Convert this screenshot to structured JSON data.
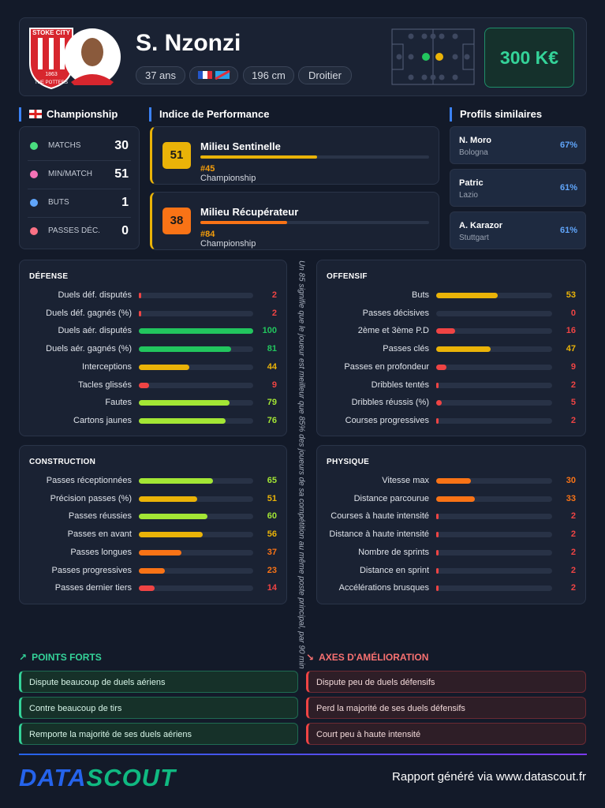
{
  "header": {
    "badge": [
      "STOKE CITY",
      "1863",
      "THE POTTERS"
    ],
    "name": "S. Nzonzi",
    "age": "37 ans",
    "height": "196 cm",
    "foot": "Droitier",
    "market_value": "300 K€"
  },
  "league": "Championship",
  "stats": [
    {
      "label": "MATCHS",
      "value": 30
    },
    {
      "label": "MIN/MATCH",
      "value": 51
    },
    {
      "label": "BUTS",
      "value": 1
    },
    {
      "label": "PASSES DÉC.",
      "value": 0
    }
  ],
  "performance": {
    "title": "Indice de Performance",
    "items": [
      {
        "score": 51,
        "role": "Milieu Sentinelle",
        "rank": "#45",
        "league": "Championship"
      },
      {
        "score": 38,
        "role": "Milieu Récupérateur",
        "rank": "#84",
        "league": "Championship"
      }
    ]
  },
  "similar": {
    "title": "Profils similaires",
    "items": [
      {
        "name": "N. Moro",
        "club": "Bologna",
        "similarity": "67%"
      },
      {
        "name": "Patric",
        "club": "Lazio",
        "similarity": "61%"
      },
      {
        "name": "A. Karazor",
        "club": "Stuttgart",
        "similarity": "61%"
      }
    ]
  },
  "panels": [
    {
      "title": "DÉFENSE",
      "metrics": [
        {
          "label": "Duels déf. disputés",
          "value": 2
        },
        {
          "label": "Duels déf. gagnés (%)",
          "value": 2
        },
        {
          "label": "Duels aér. disputés",
          "value": 100
        },
        {
          "label": "Duels aér. gagnés (%)",
          "value": 81
        },
        {
          "label": "Interceptions",
          "value": 44
        },
        {
          "label": "Tacles glissés",
          "value": 9
        },
        {
          "label": "Fautes",
          "value": 79
        },
        {
          "label": "Cartons jaunes",
          "value": 76
        }
      ]
    },
    {
      "title": "OFFENSIF",
      "metrics": [
        {
          "label": "Buts",
          "value": 53
        },
        {
          "label": "Passes décisives",
          "value": 0
        },
        {
          "label": "2ème et 3ème P.D",
          "value": 16
        },
        {
          "label": "Passes clés",
          "value": 47
        },
        {
          "label": "Passes en profondeur",
          "value": 9
        },
        {
          "label": "Dribbles tentés",
          "value": 2
        },
        {
          "label": "Dribbles réussis (%)",
          "value": 5
        },
        {
          "label": "Courses progressives",
          "value": 2
        }
      ]
    },
    {
      "title": "CONSTRUCTION",
      "metrics": [
        {
          "label": "Passes réceptionnées",
          "value": 65
        },
        {
          "label": "Précision passes (%)",
          "value": 51
        },
        {
          "label": "Passes réussies",
          "value": 60
        },
        {
          "label": "Passes en avant",
          "value": 56
        },
        {
          "label": "Passes longues",
          "value": 37
        },
        {
          "label": "Passes progressives",
          "value": 23
        },
        {
          "label": "Passes dernier tiers",
          "value": 14
        }
      ]
    },
    {
      "title": "PHYSIQUE",
      "metrics": [
        {
          "label": "Vitesse max",
          "value": 30
        },
        {
          "label": "Distance parcourue",
          "value": 33
        },
        {
          "label": "Courses à haute intensité",
          "value": 2
        },
        {
          "label": "Distance à haute intensité",
          "value": 2
        },
        {
          "label": "Nombre de sprints",
          "value": 2
        },
        {
          "label": "Distance en sprint",
          "value": 2
        },
        {
          "label": "Accélérations brusques",
          "value": 2
        }
      ]
    }
  ],
  "note": "Un 85 signifie que le joueur est meilleur que 85% des joueurs de sa compétition au même poste principal, par 90 min",
  "strengths": {
    "title": "POINTS FORTS",
    "items": [
      "Dispute beaucoup de duels aériens",
      "Contre beaucoup de tirs",
      "Remporte la majorité de ses duels aériens"
    ]
  },
  "improvements": {
    "title": "AXES D'AMÉLIORATION",
    "items": [
      "Dispute peu de duels défensifs",
      "Perd la majorité de ses duels défensifs",
      "Court peu à haute intensité"
    ]
  },
  "footer": {
    "logo_left": "DATA",
    "logo_right": "SCOUT",
    "text": "Rapport généré via www.datascout.fr"
  }
}
